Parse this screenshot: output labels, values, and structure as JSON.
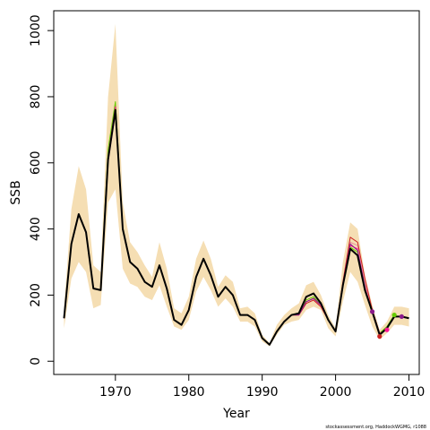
{
  "chart_data": {
    "type": "line",
    "title": "",
    "xlabel": "Year",
    "ylabel": "SSB",
    "xlim": [
      1961.6,
      2011.4
    ],
    "ylim": [
      -40,
      1060
    ],
    "x_ticks": [
      1970,
      1980,
      1990,
      2000,
      2010
    ],
    "y_ticks": [
      0,
      200,
      400,
      600,
      800,
      1000
    ],
    "grid": false,
    "legend": "none",
    "credit": "stockassessment.org, HaddockWGMG, r1088",
    "colors": {
      "band": "#f5deb3",
      "main": "#000000",
      "retro_red": "#cc2222",
      "retro_pink": "#e890a0",
      "retro_green": "#66cc00",
      "retro_magenta": "#ff1493",
      "retro_purple": "#8b1a8b"
    },
    "band": {
      "x": [
        1963,
        1964,
        1965,
        1966,
        1967,
        1968,
        1969,
        1970,
        1971,
        1972,
        1973,
        1974,
        1975,
        1976,
        1977,
        1978,
        1979,
        1980,
        1981,
        1982,
        1983,
        1984,
        1985,
        1986,
        1987,
        1988,
        1989,
        1990,
        1991,
        1992,
        1993,
        1994,
        1995,
        1996,
        1997,
        1998,
        1999,
        2000,
        2001,
        2002,
        2003,
        2004,
        2005,
        2006,
        2007,
        2008,
        2009,
        2010
      ],
      "lower": [
        100,
        250,
        300,
        270,
        160,
        170,
        480,
        520,
        280,
        235,
        225,
        195,
        185,
        230,
        165,
        105,
        95,
        125,
        210,
        255,
        215,
        165,
        190,
        165,
        120,
        120,
        105,
        60,
        45,
        80,
        110,
        120,
        125,
        155,
        165,
        155,
        100,
        75,
        180,
        270,
        240,
        170,
        105,
        65,
        85,
        110,
        110,
        105
      ],
      "upper": [
        160,
        460,
        590,
        520,
        290,
        270,
        800,
        1020,
        480,
        360,
        330,
        290,
        255,
        360,
        280,
        160,
        145,
        195,
        310,
        365,
        310,
        225,
        260,
        240,
        160,
        165,
        145,
        80,
        55,
        110,
        140,
        160,
        175,
        230,
        240,
        200,
        140,
        100,
        300,
        420,
        400,
        260,
        170,
        95,
        120,
        165,
        165,
        160
      ]
    },
    "series": [
      {
        "x": [
          1963,
          1964,
          1965,
          1966,
          1967,
          1968,
          1969,
          1970,
          1971,
          1972,
          1973,
          1974,
          1975,
          1976,
          1977,
          1978,
          1979,
          1980,
          1981,
          1982,
          1983,
          1984,
          1985,
          1986,
          1987,
          1988,
          1989,
          1990,
          1991,
          1992,
          1993,
          1994,
          1995,
          1996,
          1997,
          1998,
          1999,
          2000,
          2001,
          2002,
          2003,
          2004,
          2005,
          2006,
          2007,
          2008,
          2009,
          2010
        ],
        "y": [
          130,
          355,
          445,
          390,
          220,
          215,
          610,
          760,
          400,
          300,
          280,
          240,
          225,
          290,
          220,
          125,
          110,
          155,
          255,
          310,
          260,
          195,
          225,
          200,
          140,
          140,
          125,
          70,
          50,
          90,
          120,
          140,
          145,
          195,
          205,
          175,
          125,
          90,
          230,
          340,
          320,
          215,
          150,
          80,
          100,
          135,
          135,
          130
        ],
        "color": "#000000",
        "width": 2
      },
      {
        "x": [
          1963,
          1964,
          1965,
          1966,
          1967,
          1968,
          1969,
          1970,
          1971,
          1972,
          1973,
          1974,
          1975,
          1976,
          1977,
          1978,
          1979,
          1980,
          1981,
          1982,
          1983,
          1984,
          1985,
          1986,
          1987,
          1988,
          1989,
          1990,
          1991,
          1992,
          1993,
          1994,
          1995,
          1996,
          1997,
          1998,
          1999,
          2000,
          2001,
          2002,
          2003,
          2004,
          2005,
          2006,
          2007,
          2008
        ],
        "y": [
          130,
          355,
          445,
          390,
          220,
          215,
          640,
          785,
          405,
          300,
          280,
          240,
          225,
          290,
          220,
          125,
          110,
          155,
          255,
          310,
          260,
          195,
          225,
          200,
          140,
          140,
          125,
          70,
          50,
          90,
          120,
          140,
          140,
          185,
          195,
          170,
          125,
          90,
          230,
          345,
          330,
          225,
          155,
          85,
          105,
          140
        ],
        "color": "#66cc00",
        "width": 1
      },
      {
        "x": [
          1963,
          1964,
          1965,
          1966,
          1967,
          1968,
          1969,
          1970,
          1971,
          1972,
          1973,
          1974,
          1975,
          1976,
          1977,
          1978,
          1979,
          1980,
          1981,
          1982,
          1983,
          1984,
          1985,
          1986,
          1987,
          1988,
          1989,
          1990,
          1991,
          1992,
          1993,
          1994,
          1995,
          1996,
          1997,
          1998,
          1999,
          2000,
          2001,
          2002,
          2003,
          2004,
          2005,
          2006,
          2007
        ],
        "y": [
          130,
          355,
          445,
          390,
          220,
          215,
          620,
          770,
          400,
          300,
          280,
          240,
          225,
          290,
          220,
          125,
          110,
          155,
          255,
          310,
          260,
          195,
          225,
          200,
          140,
          140,
          125,
          70,
          50,
          90,
          120,
          140,
          140,
          180,
          190,
          170,
          125,
          90,
          230,
          350,
          340,
          230,
          155,
          85,
          95
        ],
        "color": "#ff1493",
        "width": 1
      },
      {
        "x": [
          1963,
          1964,
          1965,
          1966,
          1967,
          1968,
          1969,
          1970,
          1971,
          1972,
          1973,
          1974,
          1975,
          1976,
          1977,
          1978,
          1979,
          1980,
          1981,
          1982,
          1983,
          1984,
          1985,
          1986,
          1987,
          1988,
          1989,
          1990,
          1991,
          1992,
          1993,
          1994,
          1995,
          1996,
          1997,
          1998,
          1999,
          2000,
          2001,
          2002,
          2003,
          2004,
          2005,
          2006
        ],
        "y": [
          130,
          355,
          445,
          390,
          220,
          215,
          600,
          750,
          400,
          300,
          280,
          240,
          225,
          290,
          220,
          125,
          110,
          155,
          255,
          310,
          260,
          195,
          225,
          200,
          140,
          140,
          125,
          70,
          50,
          90,
          120,
          140,
          140,
          175,
          185,
          165,
          125,
          90,
          230,
          360,
          350,
          235,
          155,
          75
        ],
        "color": "#e890a0",
        "width": 1
      },
      {
        "x": [
          1963,
          1964,
          1965,
          1966,
          1967,
          1968,
          1969,
          1970,
          1971,
          1972,
          1973,
          1974,
          1975,
          1976,
          1977,
          1978,
          1979,
          1980,
          1981,
          1982,
          1983,
          1984,
          1985,
          1986,
          1987,
          1988,
          1989,
          1990,
          1991,
          1992,
          1993,
          1994,
          1995,
          1996,
          1997,
          1998,
          1999,
          2000,
          2001,
          2002,
          2003,
          2004,
          2005
        ],
        "y": [
          130,
          355,
          445,
          390,
          220,
          215,
          610,
          755,
          400,
          300,
          280,
          240,
          225,
          290,
          220,
          125,
          110,
          155,
          255,
          310,
          260,
          195,
          225,
          200,
          140,
          140,
          125,
          70,
          50,
          90,
          120,
          140,
          140,
          175,
          185,
          165,
          125,
          90,
          240,
          375,
          360,
          250,
          155
        ],
        "color": "#cc2222",
        "width": 1
      },
      {
        "x": [
          1963,
          1964,
          1965,
          1966,
          1967,
          1968,
          1969,
          1970,
          1971,
          1972,
          1973,
          1974,
          1975,
          1976,
          1977,
          1978,
          1979,
          1980,
          1981,
          1982,
          1983,
          1984,
          1985,
          1986,
          1987,
          1988,
          1989,
          1990,
          1991,
          1992,
          1993,
          1994,
          1995,
          1996,
          1997,
          1998,
          1999,
          2000,
          2001,
          2002,
          2003,
          2004
        ],
        "y": [
          130,
          355,
          445,
          390,
          220,
          215,
          605,
          755,
          400,
          300,
          280,
          240,
          225,
          290,
          220,
          125,
          110,
          155,
          255,
          310,
          260,
          195,
          225,
          200,
          140,
          140,
          125,
          70,
          50,
          90,
          120,
          140,
          140,
          180,
          190,
          170,
          125,
          90,
          235,
          355,
          335,
          225
        ],
        "color": "#8b1a8b",
        "width": 1
      }
    ],
    "endpoints": [
      {
        "x": 2005,
        "y": 150,
        "color": "#8b1a8b"
      },
      {
        "x": 2006,
        "y": 75,
        "color": "#cc2222"
      },
      {
        "x": 2007,
        "y": 95,
        "color": "#ff1493"
      },
      {
        "x": 2008,
        "y": 140,
        "color": "#66cc00"
      },
      {
        "x": 2009,
        "y": 135,
        "color": "#8b1a8b"
      }
    ]
  }
}
